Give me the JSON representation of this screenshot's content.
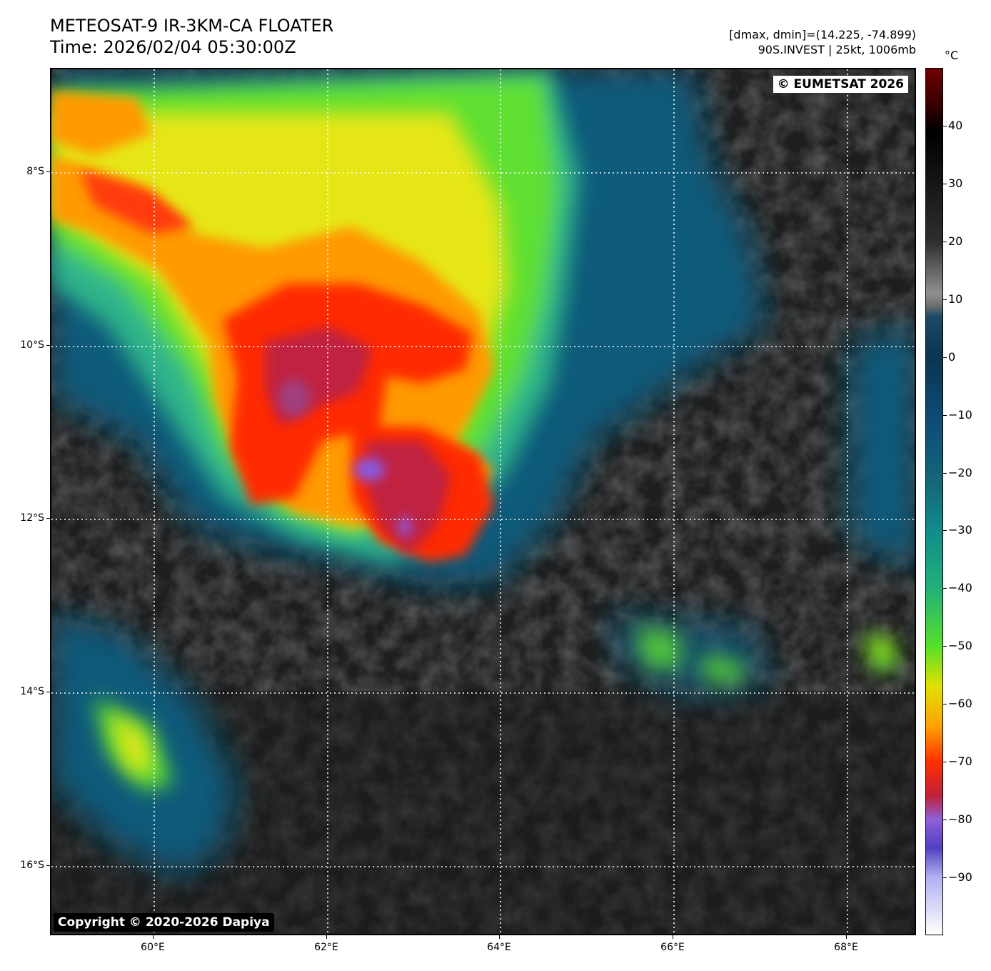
{
  "title_line1": "METEOSAT-9 IR-3KM-CA FLOATER",
  "title_line2": "Time: 2026/02/04 05:30:00Z",
  "info_line1": "[dmax, dmin]=(14.225, -74.899)",
  "info_line2": "90S.INVEST | 25kt, 1006mb",
  "copyright_top": "© EUMETSAT 2026",
  "copyright_bottom": "Copyright © 2020-2026 Dapiya",
  "lat_labels": [
    "8°S",
    "10°S",
    "12°S",
    "14°S",
    "16°S"
  ],
  "lon_labels": [
    "60°E",
    "62°E",
    "64°E",
    "66°E",
    "68°E"
  ],
  "colorbar": {
    "unit": "°C",
    "tick_labels": [
      "40",
      "30",
      "20",
      "10",
      "0",
      "−10",
      "−20",
      "−30",
      "−40",
      "−50",
      "−60",
      "−70",
      "−80",
      "−90"
    ],
    "stops": [
      {
        "t": 50,
        "color": "#700000"
      },
      {
        "t": 44,
        "color": "#3a0000"
      },
      {
        "t": 39,
        "color": "#000000"
      },
      {
        "t": 20,
        "color": "#2e2e2e"
      },
      {
        "t": 11,
        "color": "#909090"
      },
      {
        "t": 9,
        "color": "#6f6f6f"
      },
      {
        "t": 7,
        "color": "#1c4a66"
      },
      {
        "t": 0,
        "color": "#0a3552"
      },
      {
        "t": -12,
        "color": "#0e4e7a"
      },
      {
        "t": -22,
        "color": "#146878"
      },
      {
        "t": -30,
        "color": "#118b8b"
      },
      {
        "t": -40,
        "color": "#22b07a"
      },
      {
        "t": -50,
        "color": "#55e02a"
      },
      {
        "t": -57,
        "color": "#e0e000"
      },
      {
        "t": -64,
        "color": "#ffa000"
      },
      {
        "t": -70,
        "color": "#ff3000"
      },
      {
        "t": -76,
        "color": "#c0203a"
      },
      {
        "t": -80,
        "color": "#9060d8"
      },
      {
        "t": -85,
        "color": "#5040c0"
      },
      {
        "t": -90,
        "color": "#b0b0f0"
      },
      {
        "t": -100,
        "color": "#ffffff"
      }
    ]
  },
  "colors": {
    "background_dark": "#222222",
    "cloud_low": "#0f5a7a",
    "cloud_mid": "#3cd24a",
    "cloud_yellow": "#e6e614",
    "cloud_orange": "#ff9a00",
    "cloud_red": "#ff2a00",
    "cloud_core": "#c02040",
    "cloud_coldest": "#8a5ae0"
  }
}
